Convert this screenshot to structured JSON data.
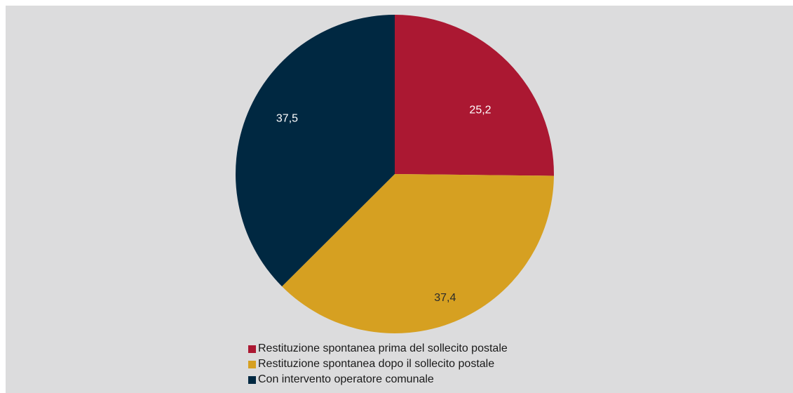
{
  "chart_data": {
    "type": "pie",
    "title": "",
    "categories": [
      "Restituzione spontanea prima del sollecito postale",
      "Restituzione spontanea dopo il sollecito postale",
      "Con intervento operatore comunale"
    ],
    "values": [
      25.2,
      37.4,
      37.5
    ],
    "value_labels": [
      "25,2",
      "37,4",
      "37,5"
    ],
    "colors": [
      "#ab1832",
      "#d6a021",
      "#002841"
    ],
    "start_angle": "12 o'clock",
    "direction": "clockwise",
    "legend_position": "bottom-center"
  },
  "panel": {
    "background": "#dcdcdd"
  }
}
